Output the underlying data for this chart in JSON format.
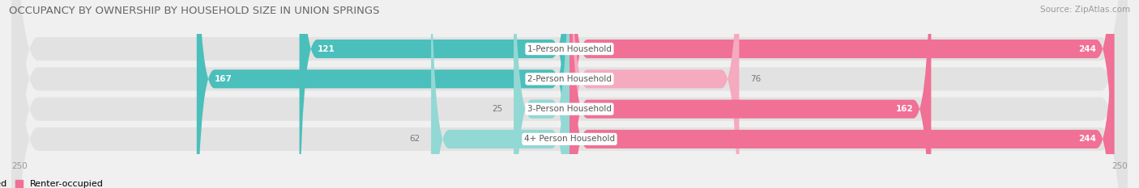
{
  "title": "OCCUPANCY BY OWNERSHIP BY HOUSEHOLD SIZE IN UNION SPRINGS",
  "source": "Source: ZipAtlas.com",
  "categories": [
    "1-Person Household",
    "2-Person Household",
    "3-Person Household",
    "4+ Person Household"
  ],
  "owner_values": [
    121,
    167,
    25,
    62
  ],
  "renter_values": [
    244,
    76,
    162,
    244
  ],
  "owner_color_dark": "#4BBFBB",
  "owner_color_light": "#92D8D5",
  "renter_color_dark": "#F07096",
  "renter_color_light": "#F5AABF",
  "axis_max": 250,
  "bg_color": "#f0f0f0",
  "row_bg_color": "#e2e2e2",
  "title_fontsize": 9.5,
  "source_fontsize": 7.5,
  "label_fontsize": 7.5,
  "value_fontsize": 7.5,
  "legend_fontsize": 8,
  "axis_label_fontsize": 7.5
}
